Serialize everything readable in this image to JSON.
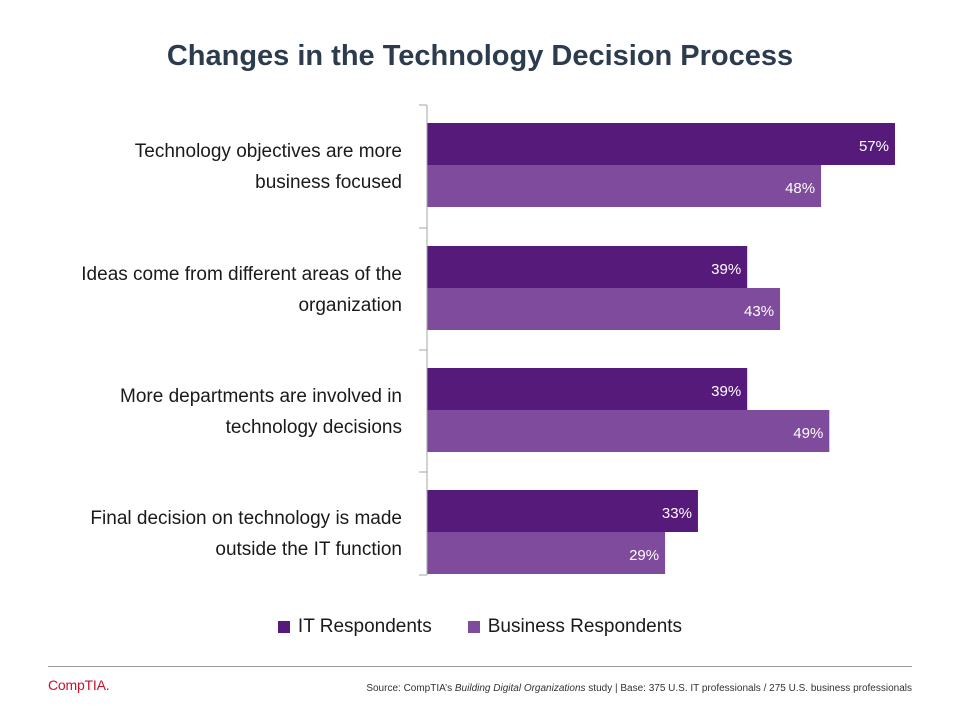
{
  "title": "Changes in the Technology Decision Process",
  "chart_data": {
    "type": "bar",
    "orientation": "horizontal",
    "categories": [
      [
        "Technology objectives are more",
        "business focused"
      ],
      [
        "Ideas come from different areas of the",
        "organization"
      ],
      [
        "More departments are involved in",
        "technology decisions"
      ],
      [
        "Final decision on technology is made",
        "outside the IT function"
      ]
    ],
    "series": [
      {
        "name": "IT Respondents",
        "values": [
          57,
          39,
          39,
          33
        ],
        "color": "#561a7a"
      },
      {
        "name": "Business Respondents",
        "values": [
          48,
          43,
          49,
          29
        ],
        "color": "#7e4b9d"
      }
    ],
    "value_suffix": "%",
    "xlim": [
      0,
      60
    ],
    "gridlines": false,
    "legend_position": "bottom"
  },
  "footer": {
    "logo": "CompTIA.",
    "source_prefix": "Source: CompTIA’s ",
    "source_study": "Building Digital Organizations",
    "source_suffix": " study | Base: 375 U.S. IT professionals / 275 U.S. business professionals"
  }
}
